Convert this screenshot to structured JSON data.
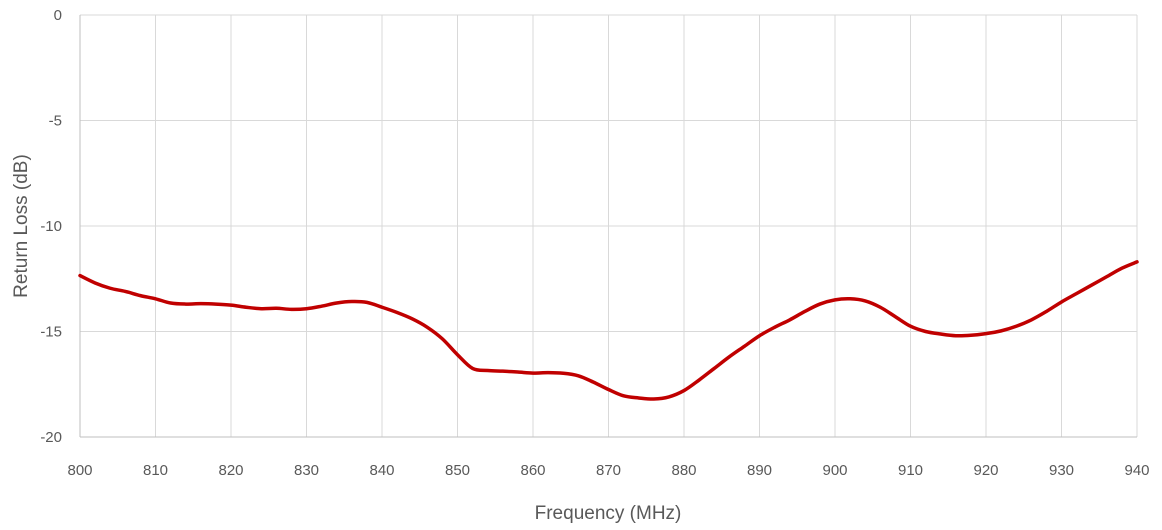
{
  "chart_data": {
    "type": "line",
    "title": "",
    "xlabel": "Frequency (MHz)",
    "ylabel": "Return Loss (dB)",
    "xlim": [
      800,
      940
    ],
    "ylim": [
      -20,
      0
    ],
    "x_ticks": [
      800,
      810,
      820,
      830,
      840,
      850,
      860,
      870,
      880,
      890,
      900,
      910,
      920,
      930,
      940
    ],
    "y_ticks": [
      0,
      -5,
      -10,
      -15,
      -20
    ],
    "grid": "vertical and horizontal",
    "legend": "none",
    "series": [
      {
        "color": "#C00000",
        "points": [
          [
            800,
            -12.35
          ],
          [
            802,
            -12.7
          ],
          [
            804,
            -12.95
          ],
          [
            806,
            -13.1
          ],
          [
            808,
            -13.3
          ],
          [
            810,
            -13.45
          ],
          [
            812,
            -13.65
          ],
          [
            814,
            -13.7
          ],
          [
            816,
            -13.68
          ],
          [
            818,
            -13.7
          ],
          [
            820,
            -13.75
          ],
          [
            822,
            -13.85
          ],
          [
            824,
            -13.92
          ],
          [
            826,
            -13.9
          ],
          [
            828,
            -13.95
          ],
          [
            830,
            -13.92
          ],
          [
            832,
            -13.8
          ],
          [
            834,
            -13.65
          ],
          [
            836,
            -13.58
          ],
          [
            838,
            -13.62
          ],
          [
            840,
            -13.85
          ],
          [
            842,
            -14.1
          ],
          [
            844,
            -14.4
          ],
          [
            846,
            -14.8
          ],
          [
            848,
            -15.35
          ],
          [
            850,
            -16.1
          ],
          [
            852,
            -16.75
          ],
          [
            854,
            -16.85
          ],
          [
            856,
            -16.88
          ],
          [
            858,
            -16.92
          ],
          [
            860,
            -16.97
          ],
          [
            862,
            -16.95
          ],
          [
            864,
            -16.98
          ],
          [
            866,
            -17.1
          ],
          [
            868,
            -17.4
          ],
          [
            870,
            -17.75
          ],
          [
            872,
            -18.05
          ],
          [
            874,
            -18.15
          ],
          [
            876,
            -18.2
          ],
          [
            878,
            -18.1
          ],
          [
            880,
            -17.8
          ],
          [
            882,
            -17.3
          ],
          [
            884,
            -16.75
          ],
          [
            886,
            -16.2
          ],
          [
            888,
            -15.7
          ],
          [
            890,
            -15.2
          ],
          [
            892,
            -14.8
          ],
          [
            894,
            -14.45
          ],
          [
            896,
            -14.05
          ],
          [
            898,
            -13.7
          ],
          [
            900,
            -13.5
          ],
          [
            902,
            -13.45
          ],
          [
            904,
            -13.55
          ],
          [
            906,
            -13.85
          ],
          [
            908,
            -14.3
          ],
          [
            910,
            -14.75
          ],
          [
            912,
            -15.0
          ],
          [
            914,
            -15.12
          ],
          [
            916,
            -15.2
          ],
          [
            918,
            -15.18
          ],
          [
            920,
            -15.1
          ],
          [
            922,
            -14.97
          ],
          [
            924,
            -14.75
          ],
          [
            926,
            -14.45
          ],
          [
            928,
            -14.05
          ],
          [
            930,
            -13.6
          ],
          [
            932,
            -13.2
          ],
          [
            934,
            -12.8
          ],
          [
            936,
            -12.4
          ],
          [
            938,
            -12.0
          ],
          [
            940,
            -11.7
          ]
        ]
      }
    ]
  }
}
